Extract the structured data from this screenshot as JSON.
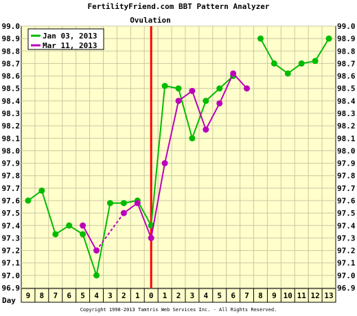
{
  "title": "FertilityFriend.com BBT Pattern Analyzer",
  "ovulation_label": "Ovulation",
  "day_label": "Day",
  "copyright": "Copyright 1998-2013 Tamtris Web Services Inc. - All Rights Reserved.",
  "colors": {
    "background": "#ffffcc",
    "grid": "#c8c8a0",
    "ovulation_line": "#ff0000",
    "series_1": "#00bb00",
    "series_2": "#bb00bb"
  },
  "chart_data": {
    "type": "line",
    "title": "FertilityFriend.com BBT Pattern Analyzer",
    "xlabel": "Day",
    "ylabel": "",
    "x_ticks": [
      "9",
      "8",
      "7",
      "6",
      "5",
      "4",
      "3",
      "2",
      "1",
      "0",
      "1",
      "2",
      "3",
      "4",
      "5",
      "6",
      "7",
      "8",
      "9",
      "10",
      "11",
      "12",
      "13"
    ],
    "x": [
      -9,
      -8,
      -7,
      -6,
      -5,
      -4,
      -3,
      -2,
      -1,
      0,
      1,
      2,
      3,
      4,
      5,
      6,
      7,
      8,
      9,
      10,
      11,
      12,
      13
    ],
    "ylim": [
      96.9,
      99.0
    ],
    "y_ticks": [
      "99.0",
      "98.9",
      "98.8",
      "98.7",
      "98.6",
      "98.5",
      "98.4",
      "98.3",
      "98.2",
      "98.1",
      "98.0",
      "97.9",
      "97.8",
      "97.7",
      "97.6",
      "97.5",
      "97.4",
      "97.3",
      "97.2",
      "97.1",
      "97.0",
      "96.9"
    ],
    "grid": true,
    "legend_position": "top-left",
    "ovulation_x": 0,
    "series": [
      {
        "name": "Jan 03, 2013",
        "color": "#00bb00",
        "values": [
          97.6,
          97.68,
          97.33,
          97.4,
          97.33,
          97.0,
          97.58,
          97.58,
          97.6,
          97.4,
          98.52,
          98.5,
          98.1,
          98.4,
          98.5,
          98.6,
          null,
          98.9,
          98.7,
          98.62,
          98.7,
          98.72,
          98.9
        ],
        "dashed_segments": []
      },
      {
        "name": "Mar 11, 2013",
        "color": "#bb00bb",
        "values": [
          null,
          null,
          null,
          null,
          97.4,
          97.2,
          null,
          97.5,
          97.58,
          97.3,
          97.9,
          98.4,
          98.48,
          98.17,
          98.38,
          98.62,
          98.5,
          null,
          null,
          null,
          null,
          null,
          null
        ],
        "dashed_segments": [
          [
            -4,
            -2
          ]
        ]
      }
    ]
  }
}
